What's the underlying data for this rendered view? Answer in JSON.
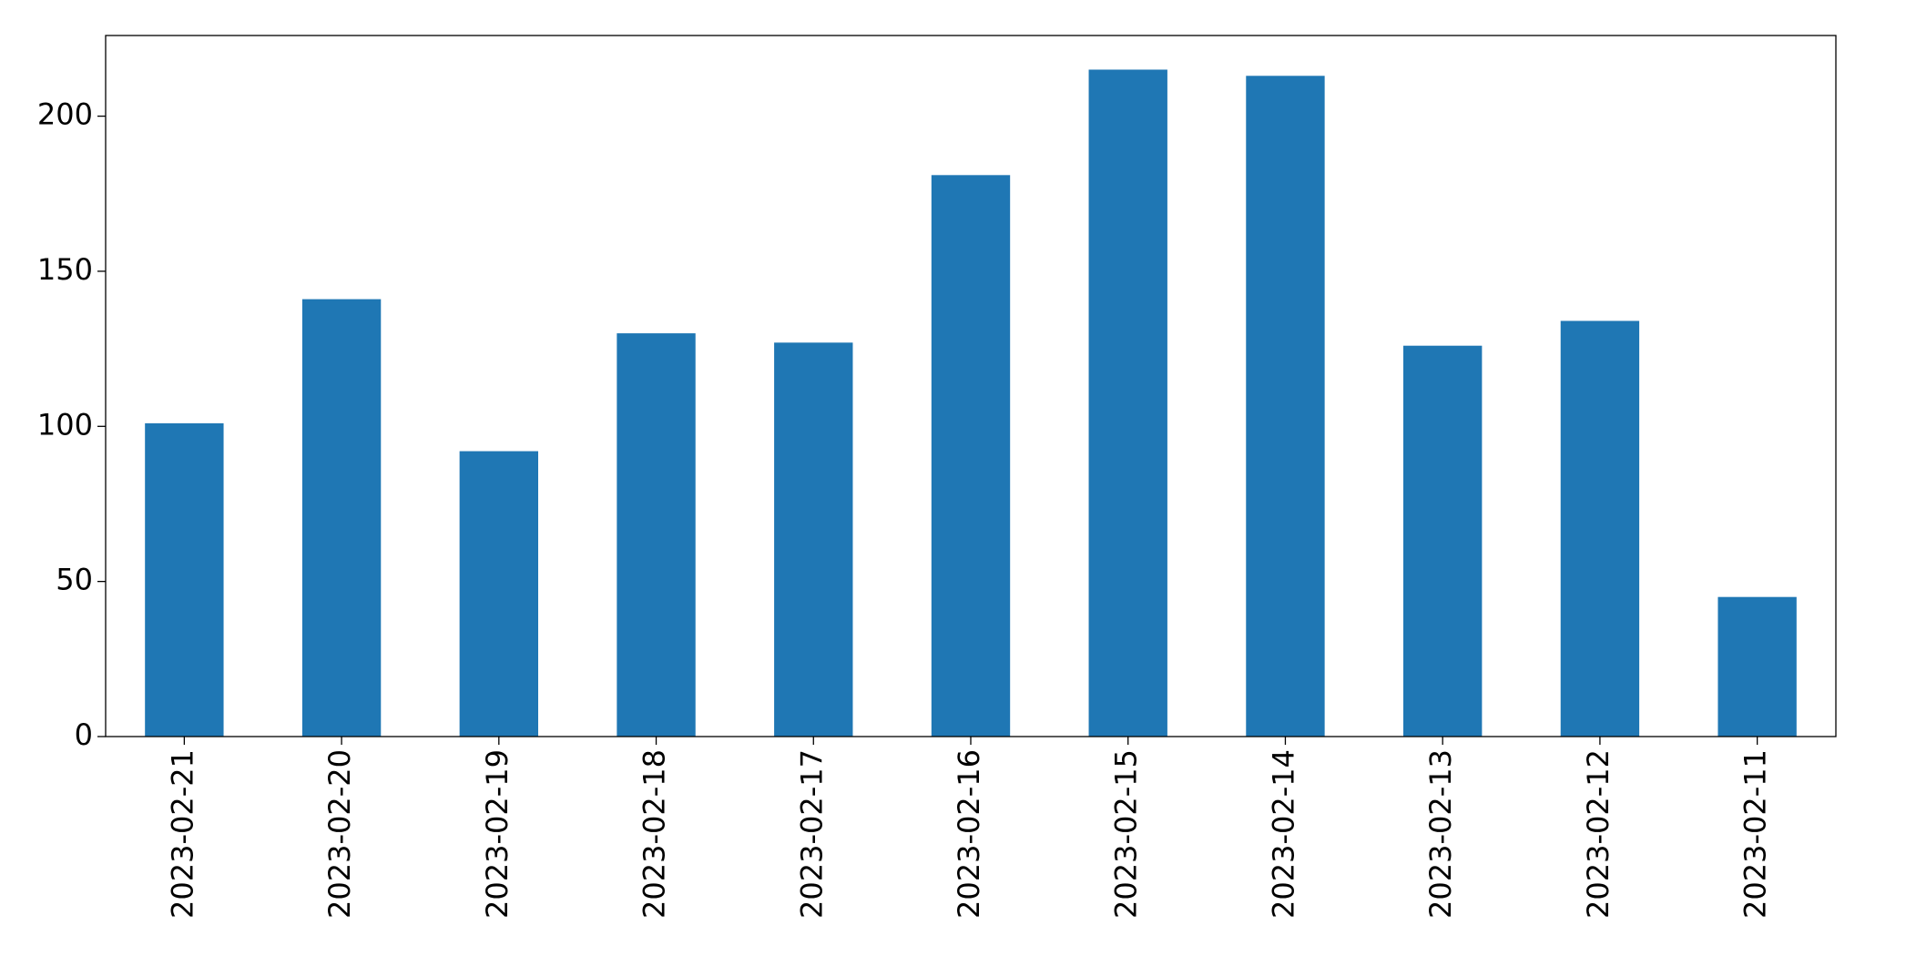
{
  "chart_data": {
    "type": "bar",
    "categories": [
      "2023-02-21",
      "2023-02-20",
      "2023-02-19",
      "2023-02-18",
      "2023-02-17",
      "2023-02-16",
      "2023-02-15",
      "2023-02-14",
      "2023-02-13",
      "2023-02-12",
      "2023-02-11"
    ],
    "values": [
      101,
      141,
      92,
      130,
      127,
      181,
      215,
      213,
      126,
      134,
      45
    ],
    "color": "#1f77b4",
    "ylim": [
      0,
      226
    ],
    "yticks": [
      0,
      50,
      100,
      150,
      200
    ],
    "grid": false
  }
}
